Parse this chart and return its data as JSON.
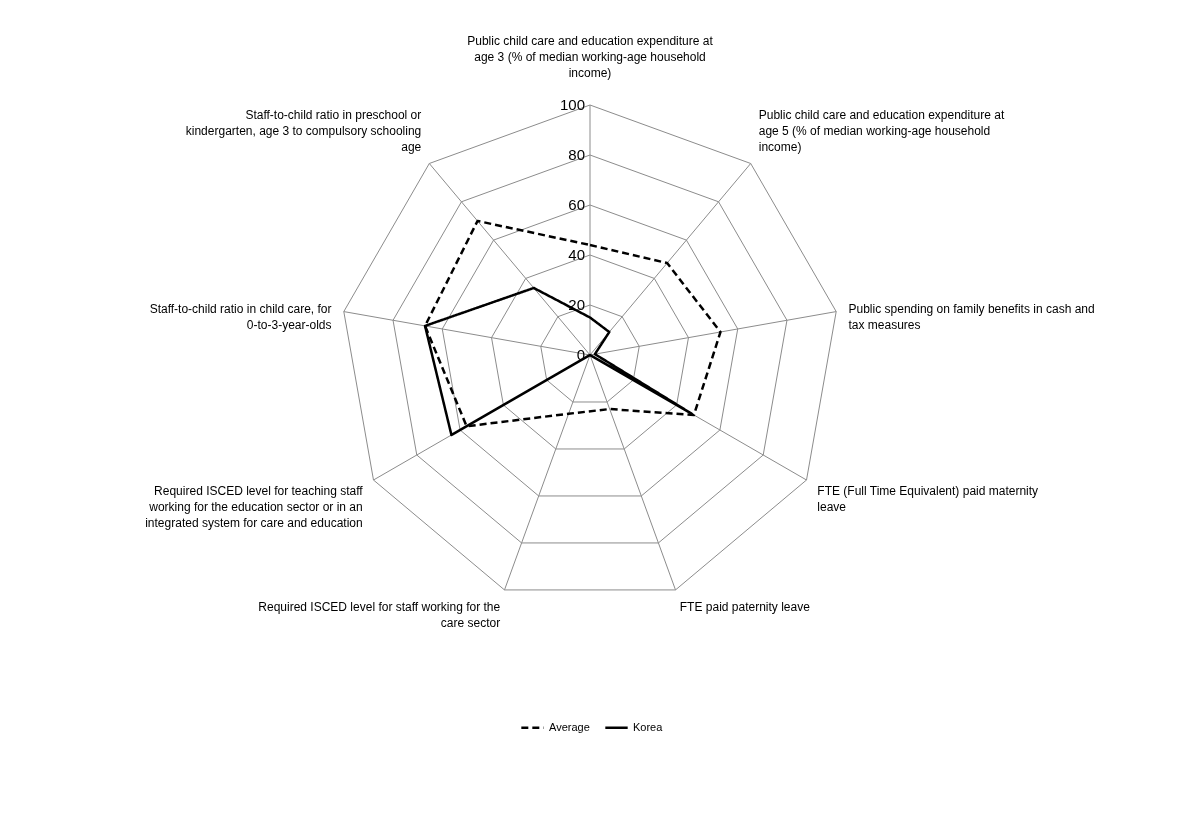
{
  "chart_data": {
    "type": "radar",
    "categories": [
      "Public child care and education expenditure at age 3 (% of median working-age household income)",
      "Public child care and education expenditure at age 5 (% of median working-age household income)",
      "Public spending on family benefits in cash and tax measures",
      "FTE (Full Time Equivalent) paid maternity leave",
      "FTE paid paternity leave",
      "Required ISCED level for staff working for the care sector",
      "Required ISCED level for teaching staff working for the education sector or in an integrated system for care and education",
      "Staff-to-child ratio in child care, for 0-to-3-year-olds",
      "Staff-to-child ratio in preschool or kindergarten, age 3 to compulsory schooling age"
    ],
    "series": [
      {
        "name": "Average",
        "color": "#000000",
        "line_style": "dashed",
        "values": [
          44,
          48,
          53,
          48,
          23,
          25,
          57,
          67,
          70
        ]
      },
      {
        "name": "Korea",
        "color": "#000000",
        "line_style": "solid",
        "values": [
          15,
          12,
          2,
          47,
          0,
          0,
          64,
          67,
          35
        ]
      }
    ],
    "ylim": [
      0,
      100
    ],
    "yticks": [
      0,
      20,
      40,
      60,
      80,
      100
    ],
    "grid": true,
    "legend": "bottom"
  }
}
